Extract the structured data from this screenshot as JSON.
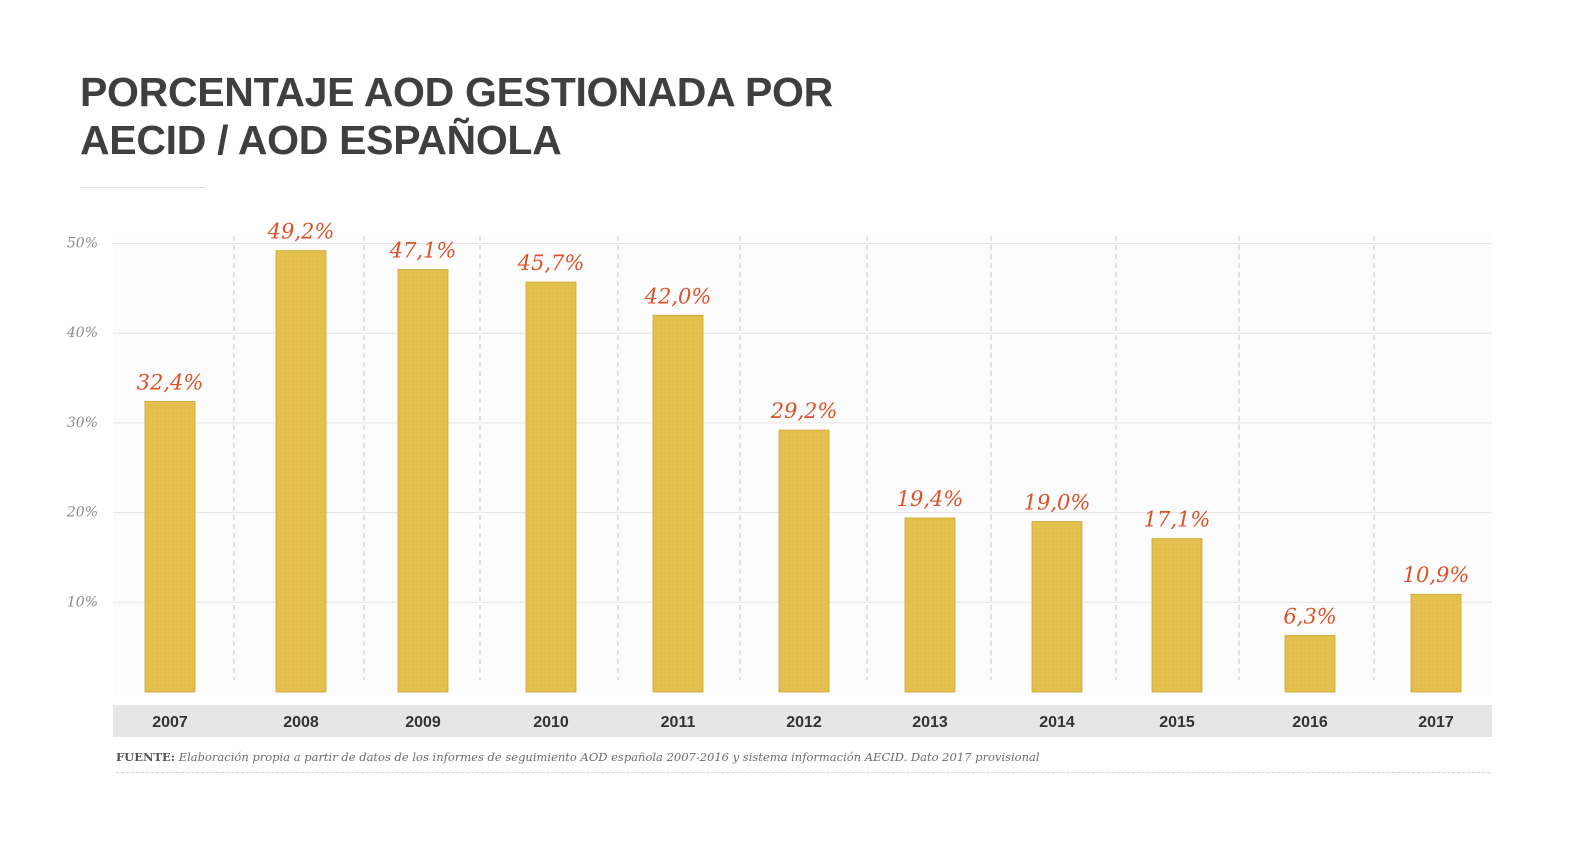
{
  "title": {
    "line1": "PORCENTAJE AOD GESTIONADA POR",
    "line2": "AECID / AOD ESPAÑOLA"
  },
  "source": {
    "label": "FUENTE:",
    "text": "Elaboración propia a partir de datos de los informes de seguimiento AOD española 2007-2016 y sistema información AECID. Dato 2017 provisional"
  },
  "colors": {
    "bar": "#e6c14f",
    "bar_grid": "#c9a532",
    "value_label": "#d9532b",
    "title": "#3f3f3f",
    "category_band": "#e6e6e6"
  },
  "chart_data": {
    "type": "bar",
    "title": "PORCENTAJE AOD GESTIONADA POR AECID / AOD ESPAÑOLA",
    "xlabel": "",
    "ylabel": "",
    "categories": [
      "2007",
      "2008",
      "2009",
      "2010",
      "2011",
      "2012",
      "2013",
      "2014",
      "2015",
      "2016",
      "2017"
    ],
    "values": [
      32.4,
      49.2,
      47.1,
      45.7,
      42.0,
      29.2,
      19.4,
      19.0,
      17.1,
      6.3,
      10.9
    ],
    "value_labels": [
      "32,4%",
      "49,2%",
      "47,1%",
      "45,7%",
      "42,0%",
      "29,2%",
      "19,4%",
      "19,0%",
      "17,1%",
      "6,3%",
      "10,9%"
    ],
    "yticks": [
      10,
      20,
      30,
      40,
      50
    ],
    "ytick_labels": [
      "10%",
      "20%",
      "30%",
      "40%",
      "50%"
    ],
    "ylim": [
      0,
      52
    ],
    "grid": true,
    "legend": "none"
  }
}
